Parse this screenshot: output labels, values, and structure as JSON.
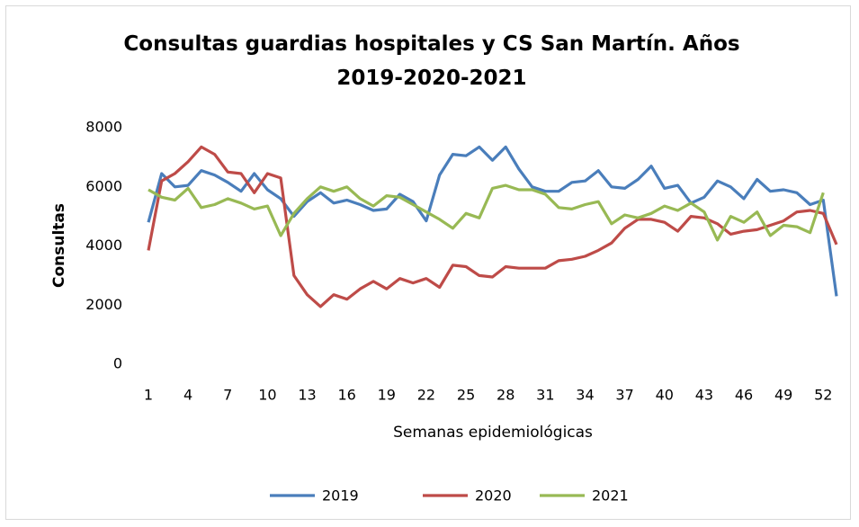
{
  "chart_data": {
    "type": "line",
    "title": "Consultas guardias hospitales y CS San Martín. Años 2019-2020-2021",
    "xlabel": "Semanas epidemiológicas",
    "ylabel": "Consultas",
    "x": [
      1,
      2,
      3,
      4,
      5,
      6,
      7,
      8,
      9,
      10,
      11,
      12,
      13,
      14,
      15,
      16,
      17,
      18,
      19,
      20,
      21,
      22,
      23,
      24,
      25,
      26,
      27,
      28,
      29,
      30,
      31,
      32,
      33,
      34,
      35,
      36,
      37,
      38,
      39,
      40,
      41,
      42,
      43,
      44,
      45,
      46,
      47,
      48,
      49,
      50,
      51,
      52,
      53
    ],
    "xlim": [
      1,
      53
    ],
    "xticks": [
      1,
      4,
      7,
      10,
      13,
      16,
      19,
      22,
      25,
      28,
      31,
      34,
      37,
      40,
      43,
      46,
      49,
      52
    ],
    "ylim": [
      0,
      8000
    ],
    "yticks": [
      0,
      2000,
      4000,
      6000,
      8000
    ],
    "grid": false,
    "legend": "bottom",
    "series": [
      {
        "name": "2019",
        "color": "#4a7ebb",
        "values": [
          4800,
          6450,
          6000,
          6050,
          6550,
          6400,
          6150,
          5850,
          6450,
          5900,
          5600,
          5000,
          5500,
          5800,
          5450,
          5550,
          5400,
          5200,
          5250,
          5750,
          5500,
          4850,
          6400,
          7100,
          7050,
          7350,
          6900,
          7350,
          6600,
          6000,
          5850,
          5850,
          6150,
          6200,
          6550,
          6000,
          5950,
          6250,
          6700,
          5950,
          6050,
          5450,
          5650,
          6200,
          6000,
          5600,
          6250,
          5850,
          5900,
          5800,
          5400,
          5550,
          2300
        ]
      },
      {
        "name": "2020",
        "color": "#be4b48",
        "values": [
          3850,
          6200,
          6450,
          6850,
          7350,
          7100,
          6500,
          6450,
          5800,
          6450,
          6300,
          3000,
          2350,
          1950,
          2350,
          2200,
          2550,
          2800,
          2550,
          2900,
          2750,
          2900,
          2600,
          3350,
          3300,
          3000,
          2950,
          3300,
          3250,
          3250,
          3250,
          3500,
          3550,
          3650,
          3850,
          4100,
          4600,
          4900,
          4900,
          4800,
          4500,
          5000,
          4950,
          4750,
          4400,
          4500,
          4550,
          4700,
          4850,
          5150,
          5200,
          5100,
          4050
        ]
      },
      {
        "name": "2021",
        "color": "#98b954",
        "values": [
          5900,
          5650,
          5550,
          5950,
          5300,
          5400,
          5600,
          5450,
          5250,
          5350,
          4350,
          5100,
          5600,
          6000,
          5850,
          6000,
          5600,
          5350,
          5700,
          5650,
          5400,
          5150,
          4900,
          4600,
          5100,
          4950,
          5950,
          6050,
          5900,
          5900,
          5750,
          5300,
          5250,
          5400,
          5500,
          4750,
          5050,
          4950,
          5100,
          5350,
          5200,
          5450,
          5150,
          4200,
          5000,
          4800,
          5150,
          4350,
          4700,
          4650,
          4450,
          5800,
          null
        ]
      }
    ]
  }
}
